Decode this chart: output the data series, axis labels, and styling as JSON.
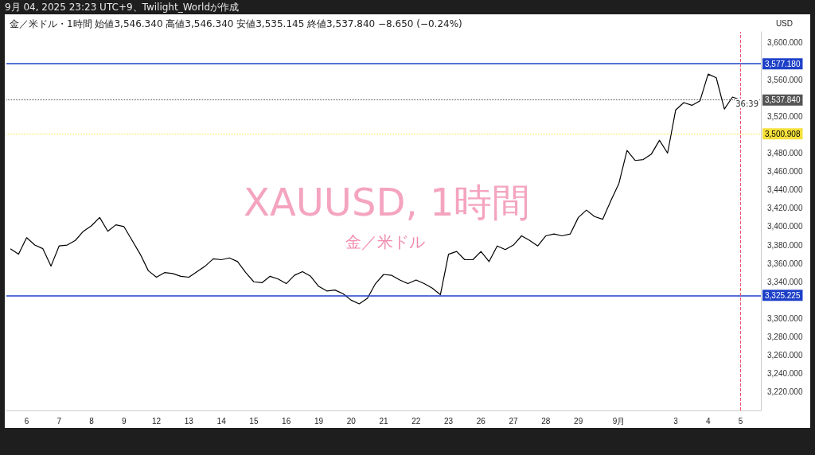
{
  "chart_data": {
    "type": "line",
    "title": "9月 04, 2025 23:23 UTC+9、Twilight_Worldが作成",
    "subtitle": "金／米ドル・1時間 始値3,546.340 高値3,546.340 安値3,535.145 終値3,537.840 −8.650 (−0.24%)",
    "ylabel": "USD",
    "annotations": [
      "XAUUSD, 1時間",
      "金／米ドル",
      "36:39"
    ],
    "categories": [
      null,
      null,
      "6",
      null,
      null,
      null,
      "7",
      null,
      null,
      null,
      "8",
      null,
      null,
      null,
      "9",
      null,
      null,
      null,
      "12",
      null,
      null,
      null,
      "13",
      null,
      null,
      null,
      "14",
      null,
      null,
      null,
      "15",
      null,
      null,
      null,
      "16",
      null,
      null,
      null,
      "19",
      null,
      null,
      null,
      "20",
      null,
      null,
      null,
      "21",
      null,
      null,
      null,
      "22",
      null,
      null,
      null,
      "23",
      null,
      null,
      null,
      "26",
      null,
      null,
      null,
      "27",
      null,
      null,
      null,
      "28",
      null,
      null,
      null,
      "29",
      null,
      null,
      null,
      null,
      "9月",
      null,
      null,
      null,
      null,
      null,
      null,
      "3",
      null,
      null,
      null,
      "4",
      null,
      null,
      null,
      "5",
      null,
      null
    ],
    "series": [
      {
        "color": "#000000",
        "values": [
          3376,
          3370,
          3388,
          3380,
          3376,
          3357,
          3379,
          3380,
          3385,
          3395,
          3401,
          3410,
          3395,
          3402,
          3400,
          3385,
          3370,
          3352,
          3345,
          3350,
          3349,
          3346,
          3345,
          3351,
          3357,
          3365,
          3364,
          3366,
          3362,
          3350,
          3340,
          3339,
          3346,
          3343,
          3338,
          3347,
          3351,
          3346,
          3335,
          3330,
          3331,
          3327,
          3320,
          3316,
          3322,
          3338,
          3348,
          3347,
          3342,
          3338,
          3342,
          3338,
          3333,
          3326,
          3370,
          3373,
          3364,
          3364,
          3373,
          3362,
          3379,
          3375,
          3380,
          3390,
          3385,
          3379,
          3390,
          3392,
          3390,
          3392,
          3410,
          3418,
          3411,
          3408,
          3428,
          3447,
          3483,
          3472,
          3473,
          3479,
          3494,
          3480,
          3527,
          3535,
          3532,
          3537,
          3566,
          3562,
          3528,
          3541,
          3538,
          null,
          null
        ]
      }
    ],
    "ylim": [
      3200,
      3612
    ],
    "yticks": [
      {
        "value": 3220,
        "label": "3,220.000"
      },
      {
        "value": 3240,
        "label": "3,240.000"
      },
      {
        "value": 3260,
        "label": "3,260.000"
      },
      {
        "value": 3280,
        "label": "3,280.000"
      },
      {
        "value": 3300,
        "label": "3,300.000"
      },
      {
        "value": 3340,
        "label": "3,340.000"
      },
      {
        "value": 3360,
        "label": "3,360.000"
      },
      {
        "value": 3380,
        "label": "3,380.000"
      },
      {
        "value": 3400,
        "label": "3,400.000"
      },
      {
        "value": 3420,
        "label": "3,420.000"
      },
      {
        "value": 3440,
        "label": "3,440.000"
      },
      {
        "value": 3460,
        "label": "3,460.000"
      },
      {
        "value": 3480,
        "label": "3,480.000"
      },
      {
        "value": 3520,
        "label": "3,520.000"
      },
      {
        "value": 3560,
        "label": "3,560.000"
      },
      {
        "value": 3600,
        "label": "3,600.000"
      }
    ],
    "ref_lines": [
      {
        "axis": "y",
        "value": 3577.18,
        "label": "3,577.180",
        "color": "#1e40c8",
        "line_style": "solid"
      },
      {
        "axis": "y",
        "value": 3325.225,
        "label": "3,325.225",
        "color": "#1e40c8",
        "line_style": "solid"
      },
      {
        "axis": "y",
        "value": 3500.908,
        "label": "3,500.908",
        "color": "#f5e03c",
        "line_style": "dotted"
      },
      {
        "axis": "y",
        "value": 3537.84,
        "label": "3,537.840",
        "color": "#555555",
        "line_style": "dotted"
      },
      {
        "axis": "x",
        "value": "5",
        "color": "#f0506e",
        "line_style": "dashed"
      }
    ],
    "grid": false,
    "marker": "none",
    "line_style": "solid"
  }
}
